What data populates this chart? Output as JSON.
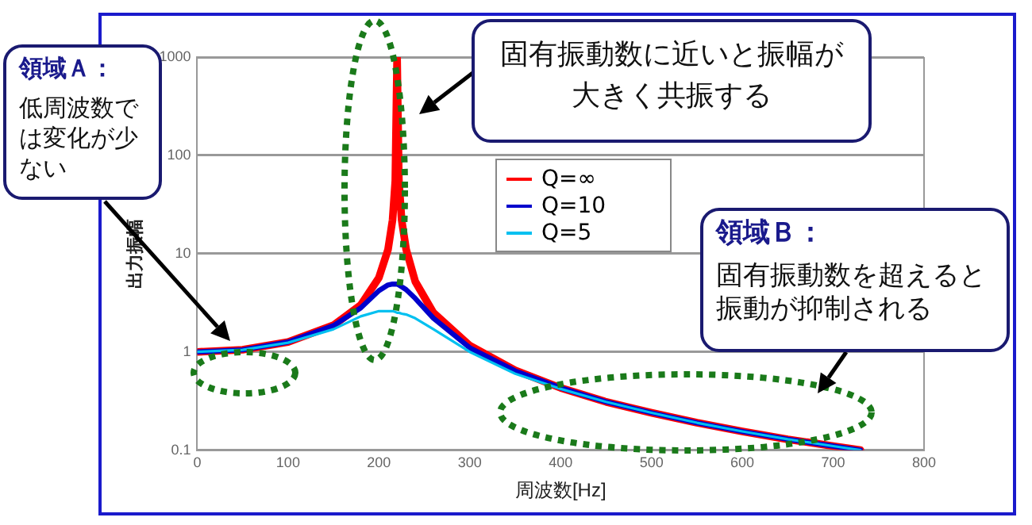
{
  "chart_data": {
    "type": "line",
    "xlabel": "周波数[Hz]",
    "ylabel": "出力振幅",
    "x": [
      0,
      50,
      100,
      150,
      180,
      200,
      210,
      215,
      218,
      220,
      222,
      225,
      230,
      240,
      260,
      300,
      350,
      400,
      450,
      500,
      550,
      600,
      650,
      700,
      730
    ],
    "series": [
      {
        "name": "Q=∞",
        "color": "#ff0000",
        "values": [
          1,
          1.05,
          1.26,
          1.87,
          3.0,
          5.7,
          11,
          22,
          55,
          1000,
          55,
          22,
          11,
          5.2,
          2.5,
          1.16,
          0.65,
          0.43,
          0.31,
          0.24,
          0.19,
          0.155,
          0.129,
          0.11,
          0.1
        ]
      },
      {
        "name": "Q=10",
        "color": "#0000cc",
        "values": [
          1,
          1.05,
          1.26,
          1.85,
          2.8,
          4.2,
          4.8,
          4.9,
          4.9,
          4.9,
          4.8,
          4.6,
          4.3,
          3.5,
          2.2,
          1.1,
          0.64,
          0.43,
          0.31,
          0.24,
          0.19,
          0.155,
          0.129,
          0.11,
          0.1
        ]
      },
      {
        "name": "Q=5",
        "color": "#00c0f0",
        "values": [
          1,
          1.05,
          1.24,
          1.7,
          2.3,
          2.6,
          2.6,
          2.6,
          2.55,
          2.5,
          2.5,
          2.45,
          2.4,
          2.2,
          1.7,
          1.0,
          0.6,
          0.42,
          0.31,
          0.24,
          0.19,
          0.155,
          0.129,
          0.11,
          0.1
        ]
      }
    ],
    "xlim": [
      0,
      800
    ],
    "xticks": [
      0,
      100,
      200,
      300,
      400,
      500,
      600,
      700,
      800
    ],
    "ylim": [
      0.1,
      1000
    ],
    "yticks": [
      0.1,
      1,
      10,
      100,
      1000
    ],
    "log": "y",
    "grid": "y",
    "legend": "top",
    "marker": "none",
    "line_style": "solid",
    "annotations": [
      "領域Ａ：",
      "低周波数では変化が少ない",
      "固有振動数に近いと振幅が大きく共振する",
      "領域Ｂ：",
      "固有振動数を超えると振動が抑制される"
    ]
  }
}
